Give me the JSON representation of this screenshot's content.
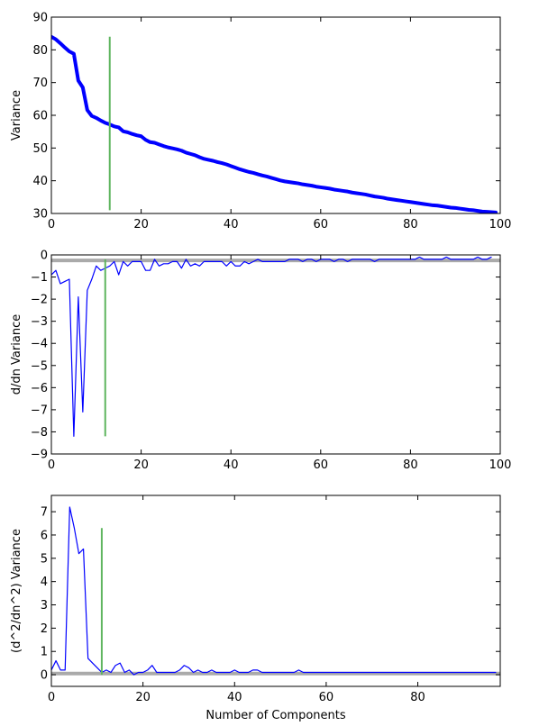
{
  "figure": {
    "xlabel_bottom": "Number of Components"
  },
  "chart_data": [
    {
      "id": "variance",
      "type": "line",
      "ylabel": "Variance",
      "xlim": [
        0,
        100
      ],
      "ylim": [
        30,
        90
      ],
      "xticks": [
        0,
        20,
        40,
        60,
        80,
        100
      ],
      "yticks": [
        30,
        40,
        50,
        60,
        70,
        80,
        90
      ],
      "series": [
        {
          "color": "#0000ff",
          "x": [
            0,
            1,
            2,
            3,
            4,
            5,
            6,
            7,
            8,
            9,
            10,
            11,
            12,
            13,
            14,
            15,
            16,
            17,
            18,
            19,
            20,
            21,
            22,
            23,
            24,
            25,
            26,
            27,
            28,
            29,
            30,
            31,
            32,
            33,
            34,
            35,
            36,
            37,
            38,
            39,
            40,
            41,
            42,
            43,
            44,
            45,
            46,
            47,
            48,
            49,
            50,
            51,
            52,
            53,
            54,
            55,
            56,
            57,
            58,
            59,
            60,
            61,
            62,
            63,
            64,
            65,
            66,
            67,
            68,
            69,
            70,
            71,
            72,
            73,
            74,
            75,
            76,
            77,
            78,
            79,
            80,
            81,
            82,
            83,
            84,
            85,
            86,
            87,
            88,
            89,
            90,
            91,
            92,
            93,
            94,
            95,
            96,
            97,
            98,
            99
          ],
          "y": [
            84,
            83.2,
            82,
            80.7,
            79.5,
            78.8,
            70.6,
            68.5,
            61.6,
            59.8,
            59.2,
            58.4,
            57.7,
            57.2,
            56.6,
            56.3,
            55.1,
            54.8,
            54.3,
            53.9,
            53.6,
            52.5,
            51.8,
            51.6,
            51.1,
            50.6,
            50.2,
            49.9,
            49.6,
            49.2,
            48.6,
            48.2,
            47.8,
            47.2,
            46.7,
            46.4,
            46.1,
            45.7,
            45.4,
            45,
            44.5,
            44,
            43.5,
            43.1,
            42.7,
            42.4,
            42,
            41.6,
            41.3,
            40.9,
            40.5,
            40.1,
            39.8,
            39.6,
            39.4,
            39.2,
            38.9,
            38.7,
            38.5,
            38.2,
            38,
            37.8,
            37.6,
            37.3,
            37.1,
            36.9,
            36.7,
            36.4,
            36.2,
            36,
            35.8,
            35.5,
            35.2,
            35,
            34.8,
            34.5,
            34.3,
            34.1,
            33.9,
            33.7,
            33.5,
            33.3,
            33.1,
            32.9,
            32.7,
            32.5,
            32.4,
            32.2,
            32,
            31.8,
            31.7,
            31.5,
            31.3,
            31.1,
            31,
            30.8,
            30.6,
            30.5,
            30.4,
            30.3
          ]
        }
      ],
      "vline": {
        "x": 13,
        "y_range": [
          31,
          84
        ],
        "color": "#5fb55f"
      }
    },
    {
      "id": "first-derivative",
      "type": "line",
      "ylabel": "d/dn Variance",
      "xlim": [
        0,
        100
      ],
      "ylim": [
        -9,
        0
      ],
      "xticks": [
        0,
        20,
        40,
        60,
        80,
        100
      ],
      "yticks": [
        -9,
        -8,
        -7,
        -6,
        -5,
        -4,
        -3,
        -2,
        -1,
        0
      ],
      "series": [
        {
          "color": "#0000ff",
          "x": [
            0,
            1,
            2,
            3,
            4,
            5,
            6,
            7,
            8,
            9,
            10,
            11,
            12,
            13,
            14,
            15,
            16,
            17,
            18,
            19,
            20,
            21,
            22,
            23,
            24,
            25,
            26,
            27,
            28,
            29,
            30,
            31,
            32,
            33,
            34,
            35,
            36,
            37,
            38,
            39,
            40,
            41,
            42,
            43,
            44,
            45,
            46,
            47,
            48,
            49,
            50,
            51,
            52,
            53,
            54,
            55,
            56,
            57,
            58,
            59,
            60,
            61,
            62,
            63,
            64,
            65,
            66,
            67,
            68,
            69,
            70,
            71,
            72,
            73,
            74,
            75,
            76,
            77,
            78,
            79,
            80,
            81,
            82,
            83,
            84,
            85,
            86,
            87,
            88,
            89,
            90,
            91,
            92,
            93,
            94,
            95,
            96,
            97,
            98
          ],
          "y": [
            -0.9,
            -0.7,
            -1.3,
            -1.2,
            -1.1,
            -8.2,
            -1.9,
            -7.1,
            -1.6,
            -1.1,
            -0.5,
            -0.7,
            -0.6,
            -0.5,
            -0.3,
            -0.9,
            -0.3,
            -0.5,
            -0.3,
            -0.3,
            -0.3,
            -0.7,
            -0.7,
            -0.2,
            -0.5,
            -0.4,
            -0.4,
            -0.3,
            -0.3,
            -0.6,
            -0.2,
            -0.5,
            -0.4,
            -0.5,
            -0.3,
            -0.3,
            -0.3,
            -0.3,
            -0.3,
            -0.5,
            -0.3,
            -0.5,
            -0.5,
            -0.3,
            -0.4,
            -0.3,
            -0.2,
            -0.3,
            -0.3,
            -0.3,
            -0.3,
            -0.3,
            -0.3,
            -0.2,
            -0.2,
            -0.2,
            -0.3,
            -0.2,
            -0.2,
            -0.3,
            -0.2,
            -0.2,
            -0.2,
            -0.3,
            -0.2,
            -0.2,
            -0.3,
            -0.2,
            -0.2,
            -0.2,
            -0.2,
            -0.2,
            -0.3,
            -0.2,
            -0.2,
            -0.2,
            -0.2,
            -0.2,
            -0.2,
            -0.2,
            -0.2,
            -0.2,
            -0.1,
            -0.2,
            -0.2,
            -0.2,
            -0.2,
            -0.2,
            -0.1,
            -0.2,
            -0.2,
            -0.2,
            -0.2,
            -0.2,
            -0.2,
            -0.1,
            -0.2,
            -0.2,
            -0.1
          ]
        }
      ],
      "hline": {
        "y": -0.25,
        "color": "#aaaaaa"
      },
      "vline": {
        "x": 12,
        "y_range": [
          -8.2,
          -0.2
        ],
        "color": "#5fb55f"
      }
    },
    {
      "id": "second-derivative",
      "type": "line",
      "ylabel": "(d^2/dn^2) Variance",
      "xlim": [
        0,
        98
      ],
      "ylim": [
        -0.5,
        7.7
      ],
      "xticks": [
        0,
        20,
        40,
        60,
        80
      ],
      "yticks": [
        0,
        1,
        2,
        3,
        4,
        5,
        6,
        7
      ],
      "series": [
        {
          "color": "#0000ff",
          "x": [
            0,
            1,
            2,
            3,
            4,
            5,
            6,
            7,
            8,
            9,
            10,
            11,
            12,
            13,
            14,
            15,
            16,
            17,
            18,
            19,
            20,
            21,
            22,
            23,
            24,
            25,
            26,
            27,
            28,
            29,
            30,
            31,
            32,
            33,
            34,
            35,
            36,
            37,
            38,
            39,
            40,
            41,
            42,
            43,
            44,
            45,
            46,
            47,
            48,
            49,
            50,
            51,
            52,
            53,
            54,
            55,
            56,
            57,
            58,
            59,
            60,
            61,
            62,
            63,
            64,
            65,
            66,
            67,
            68,
            69,
            70,
            71,
            72,
            73,
            74,
            75,
            76,
            77,
            78,
            79,
            80,
            81,
            82,
            83,
            84,
            85,
            86,
            87,
            88,
            89,
            90,
            91,
            92,
            93,
            94,
            95,
            96,
            97
          ],
          "y": [
            0.2,
            0.6,
            0.2,
            0.2,
            7.2,
            6.3,
            5.2,
            5.4,
            0.7,
            0.5,
            0.3,
            0.1,
            0.2,
            0.1,
            0.4,
            0.5,
            0.1,
            0.2,
            0,
            0.1,
            0.1,
            0.2,
            0.4,
            0.1,
            0.1,
            0.1,
            0.1,
            0.1,
            0.2,
            0.4,
            0.3,
            0.1,
            0.2,
            0.1,
            0.1,
            0.2,
            0.1,
            0.1,
            0.1,
            0.1,
            0.2,
            0.1,
            0.1,
            0.1,
            0.2,
            0.2,
            0.1,
            0.1,
            0.1,
            0.1,
            0.1,
            0.1,
            0.1,
            0.1,
            0.2,
            0.1,
            0.1,
            0.1,
            0.1,
            0.1,
            0.1,
            0.1,
            0.1,
            0.1,
            0.1,
            0.1,
            0.1,
            0.1,
            0.1,
            0.1,
            0.1,
            0.1,
            0.1,
            0.1,
            0.1,
            0.1,
            0.1,
            0.1,
            0.1,
            0.1,
            0.1,
            0.1,
            0.1,
            0.1,
            0.1,
            0.1,
            0.1,
            0.1,
            0.1,
            0.1,
            0.1,
            0.1,
            0.1,
            0.1,
            0.1,
            0.1,
            0.1,
            0.1
          ]
        }
      ],
      "hline": {
        "y": 0.05,
        "color": "#aaaaaa"
      },
      "vline": {
        "x": 11,
        "y_range": [
          0,
          6.3
        ],
        "color": "#5fb55f"
      }
    }
  ]
}
